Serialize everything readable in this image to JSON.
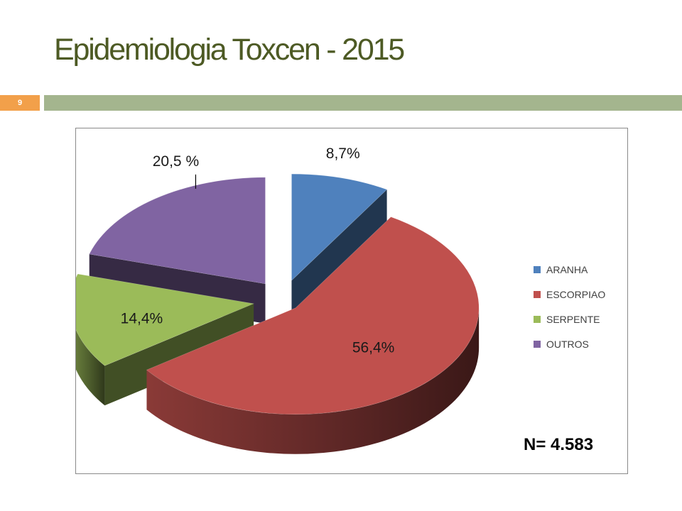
{
  "slide": {
    "title": "Epidemiologia Toxcen - 2015",
    "page_number": "9"
  },
  "colors": {
    "title": "#4d5a24",
    "page_number_box": "#f2a04a",
    "title_rule": "#a4b58e"
  },
  "chart_data": {
    "type": "pie",
    "style": "3d-exploded",
    "legend_position": "right",
    "slices": [
      {
        "label": "ARANHA",
        "value": 8.7,
        "data_label": "8,7%",
        "color": "#4f81bd"
      },
      {
        "label": "ESCORPIAO",
        "value": 56.4,
        "data_label": "56,4%",
        "color": "#c0504d"
      },
      {
        "label": "SERPENTE",
        "value": 14.4,
        "data_label": "14,4%",
        "color": "#9bbb59"
      },
      {
        "label": "OUTROS",
        "value": 20.5,
        "data_label": "20,5 %",
        "color": "#8064a2"
      }
    ],
    "annotation": "N= 4.583"
  }
}
